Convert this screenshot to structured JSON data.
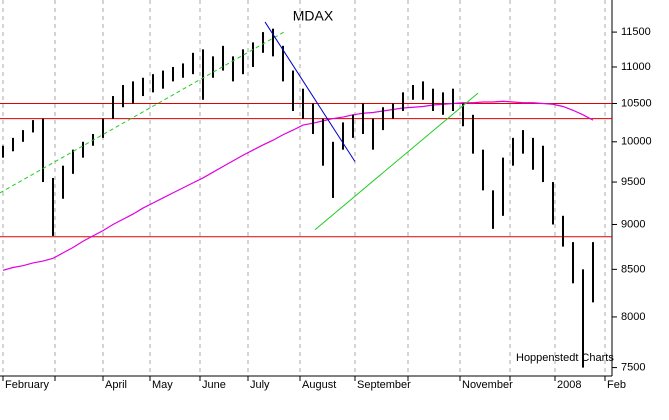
{
  "chart_data": {
    "type": "ohlc",
    "title": "MDAX",
    "source": "Hoppenstedt Charts",
    "bar_color": "#000000",
    "high": [
      9950,
      10050,
      10150,
      10280,
      10300,
      9550,
      9700,
      9900,
      10000,
      10100,
      10300,
      10600,
      10750,
      10800,
      10850,
      10900,
      10950,
      11000,
      11050,
      11200,
      11250,
      11150,
      11300,
      11150,
      11250,
      11350,
      11500,
      11550,
      11300,
      10950,
      10700,
      10500,
      10300,
      10000,
      10250,
      10350,
      10500,
      10300,
      10450,
      10500,
      10650,
      10750,
      10800,
      10700,
      10650,
      10700,
      10500,
      10350,
      9900,
      9400,
      9800,
      10050,
      10150,
      10050,
      9950,
      9500,
      9100,
      8800,
      8500,
      8800
    ],
    "low": [
      9800,
      9880,
      10000,
      10120,
      9500,
      8870,
      9300,
      9600,
      9800,
      9950,
      10050,
      10300,
      10450,
      10500,
      10600,
      10650,
      10700,
      10800,
      10850,
      10900,
      10550,
      10850,
      10950,
      10800,
      10900,
      11000,
      11200,
      11150,
      10800,
      10400,
      10300,
      10100,
      9700,
      9310,
      9900,
      10050,
      10100,
      9900,
      10150,
      10300,
      10400,
      10550,
      10550,
      10400,
      10350,
      10400,
      10200,
      9850,
      9400,
      8950,
      9100,
      9700,
      9850,
      9650,
      9500,
      9000,
      8750,
      8350,
      7500,
      8150
    ],
    "moving_average": {
      "color": "#e000e0",
      "values": [
        8490,
        8520,
        8540,
        8570,
        8590,
        8620,
        8680,
        8740,
        8810,
        8870,
        8930,
        9000,
        9060,
        9120,
        9190,
        9250,
        9310,
        9370,
        9430,
        9490,
        9550,
        9620,
        9690,
        9760,
        9830,
        9895,
        9960,
        10020,
        10090,
        10150,
        10215,
        10240,
        10270,
        10300,
        10320,
        10350,
        10370,
        10380,
        10400,
        10420,
        10440,
        10450,
        10460,
        10480,
        10490,
        10500,
        10510,
        10510,
        10520,
        10520,
        10530,
        10520,
        10510,
        10510,
        10500,
        10490,
        10460,
        10410,
        10350,
        10280
      ]
    },
    "levels": [
      {
        "value": 10500,
        "color": "#e00000"
      },
      {
        "value": 10300,
        "color": "#e00000"
      },
      {
        "value": 8860,
        "color": "#e00000"
      }
    ],
    "trendlines": [
      {
        "x": [
          -0.3,
          28.2
        ],
        "y": [
          9370,
          11510
        ],
        "color": "#22cc22",
        "dashed": true
      },
      {
        "x": [
          26.2,
          35.2
        ],
        "y": [
          11650,
          9750
        ],
        "color": "#0000cc",
        "dashed": false
      },
      {
        "x": [
          31.2,
          47.5
        ],
        "y": [
          8940,
          10640
        ],
        "color": "#22cc22",
        "dashed": false
      }
    ],
    "xlim": [
      -0.3,
      60.9
    ],
    "ylim": [
      7420,
      11980
    ],
    "log_scale": true,
    "grid": true,
    "xticks": [
      {
        "value": 0,
        "label": "February"
      },
      {
        "value": 5.2,
        "label": null
      },
      {
        "value": 10,
        "label": "April"
      },
      {
        "value": 14.7,
        "label": "May"
      },
      {
        "value": 19.7,
        "label": "June"
      },
      {
        "value": 24.5,
        "label": "July"
      },
      {
        "value": 29.7,
        "label": "August"
      },
      {
        "value": 35.2,
        "label": "September"
      },
      {
        "value": 40.5,
        "label": null
      },
      {
        "value": 45.7,
        "label": "November"
      },
      {
        "value": 50.7,
        "label": null
      },
      {
        "value": 55.2,
        "label": "2008"
      },
      {
        "value": 60.2,
        "label": "Feb"
      }
    ],
    "yticks": [
      11500,
      11000,
      10500,
      10000,
      9500,
      9000,
      8500,
      8000,
      7500
    ]
  }
}
